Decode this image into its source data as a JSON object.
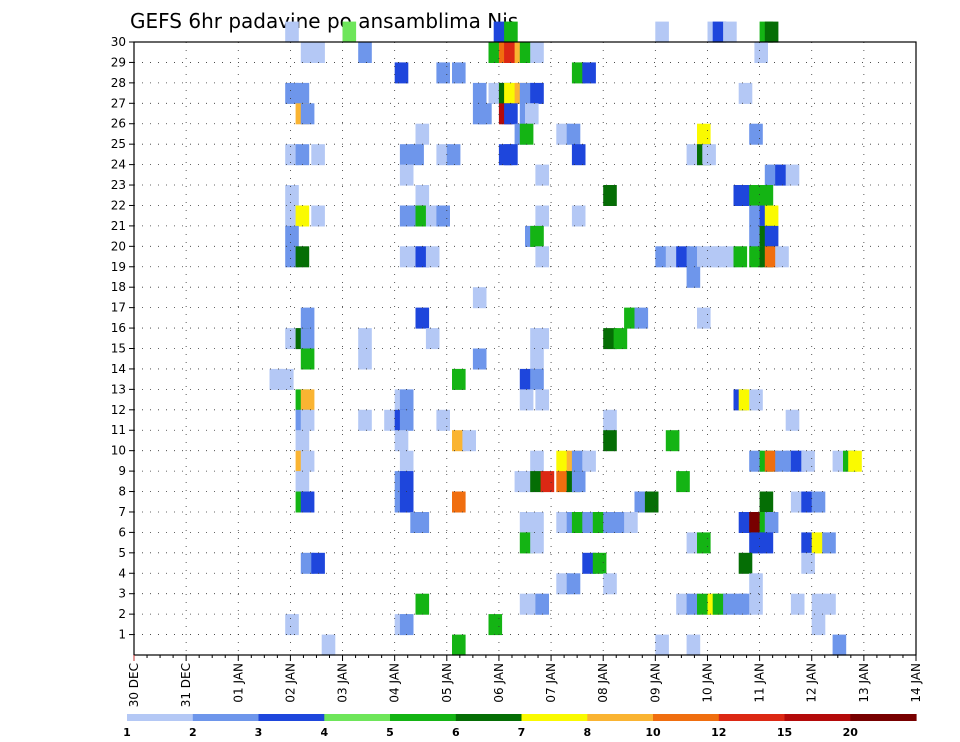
{
  "chart_data": {
    "type": "heatmap",
    "title": "GEFS 6hr padavine po ansamblima Nis",
    "xlabel": "",
    "ylabel": "",
    "x_ticks": [
      "30 DEC",
      "31 DEC",
      "01 JAN",
      "02 JAN",
      "03 JAN",
      "04 JAN",
      "05 JAN",
      "06 JAN",
      "07 JAN",
      "08 JAN",
      "09 JAN",
      "10 JAN",
      "11 JAN",
      "12 JAN",
      "13 JAN",
      "14 JAN"
    ],
    "xlim": [
      0,
      15
    ],
    "y_ticks": [
      1,
      2,
      3,
      4,
      5,
      6,
      7,
      8,
      9,
      10,
      11,
      12,
      13,
      14,
      15,
      16,
      17,
      18,
      19,
      20,
      21,
      22,
      23,
      24,
      25,
      26,
      27,
      28,
      29,
      30
    ],
    "ylim": [
      0,
      30
    ],
    "grid": true,
    "legend": {
      "placement": "bottom",
      "levels": [
        1,
        2,
        3,
        4,
        5,
        6,
        7,
        8,
        10,
        12,
        15,
        20
      ],
      "colors": [
        "#b4c8f5",
        "#6e96eb",
        "#1e46dc",
        "#6ee65a",
        "#14b414",
        "#056e05",
        "#fafa00",
        "#fab432",
        "#f06e0f",
        "#dc2814",
        "#b40a0a",
        "#780000"
      ]
    },
    "cells": [
      [
        2.9,
        30,
        1
      ],
      [
        4.0,
        30,
        4
      ],
      [
        6.9,
        30,
        3
      ],
      [
        7.1,
        30,
        5
      ],
      [
        10.0,
        30,
        1
      ],
      [
        11.0,
        30,
        1
      ],
      [
        11.1,
        30,
        3
      ],
      [
        11.3,
        30,
        1
      ],
      [
        12.0,
        30,
        5
      ],
      [
        12.1,
        30,
        6
      ],
      [
        3.2,
        29,
        1
      ],
      [
        3.4,
        29,
        1
      ],
      [
        4.3,
        29,
        2
      ],
      [
        6.8,
        29,
        5
      ],
      [
        7.0,
        29,
        10
      ],
      [
        7.1,
        29,
        12
      ],
      [
        7.3,
        29,
        8
      ],
      [
        7.4,
        29,
        5
      ],
      [
        7.6,
        29,
        1
      ],
      [
        11.9,
        29,
        1
      ],
      [
        5.0,
        28,
        3
      ],
      [
        5.8,
        28,
        2
      ],
      [
        6.1,
        28,
        2
      ],
      [
        8.4,
        28,
        5
      ],
      [
        8.6,
        28,
        3
      ],
      [
        2.9,
        27,
        2
      ],
      [
        3.1,
        27,
        2
      ],
      [
        6.5,
        27,
        2
      ],
      [
        6.8,
        27,
        1
      ],
      [
        7.0,
        27,
        6
      ],
      [
        7.1,
        27,
        7
      ],
      [
        7.3,
        27,
        8
      ],
      [
        7.4,
        27,
        2
      ],
      [
        7.6,
        27,
        3
      ],
      [
        11.6,
        27,
        1
      ],
      [
        3.1,
        26,
        8
      ],
      [
        3.2,
        26,
        2
      ],
      [
        6.5,
        26,
        2
      ],
      [
        6.6,
        26,
        2
      ],
      [
        7.0,
        26,
        15
      ],
      [
        7.1,
        26,
        3
      ],
      [
        7.4,
        26,
        2
      ],
      [
        7.5,
        26,
        1
      ],
      [
        5.4,
        25,
        1
      ],
      [
        7.3,
        25,
        2
      ],
      [
        7.4,
        25,
        5
      ],
      [
        8.1,
        25,
        1
      ],
      [
        8.3,
        25,
        2
      ],
      [
        10.8,
        25,
        7
      ],
      [
        11.8,
        25,
        2
      ],
      [
        2.9,
        24,
        1
      ],
      [
        3.1,
        24,
        2
      ],
      [
        3.4,
        24,
        1
      ],
      [
        5.1,
        24,
        2
      ],
      [
        5.3,
        24,
        2
      ],
      [
        5.8,
        24,
        1
      ],
      [
        6.0,
        24,
        2
      ],
      [
        7.0,
        24,
        3
      ],
      [
        7.1,
        24,
        3
      ],
      [
        8.4,
        24,
        3
      ],
      [
        10.6,
        24,
        1
      ],
      [
        10.8,
        24,
        6
      ],
      [
        10.9,
        24,
        1
      ],
      [
        5.1,
        23,
        1
      ],
      [
        7.7,
        23,
        1
      ],
      [
        12.1,
        23,
        2
      ],
      [
        12.3,
        23,
        3
      ],
      [
        12.5,
        23,
        1
      ],
      [
        2.9,
        22,
        1
      ],
      [
        5.4,
        22,
        1
      ],
      [
        9.0,
        22,
        6
      ],
      [
        11.5,
        22,
        3
      ],
      [
        11.6,
        22,
        3
      ],
      [
        11.8,
        22,
        5
      ],
      [
        12.0,
        22,
        5
      ],
      [
        2.9,
        21,
        1
      ],
      [
        3.1,
        21,
        7
      ],
      [
        3.4,
        21,
        1
      ],
      [
        5.1,
        21,
        2
      ],
      [
        5.3,
        21,
        2
      ],
      [
        5.4,
        21,
        5
      ],
      [
        5.6,
        21,
        1
      ],
      [
        5.8,
        21,
        2
      ],
      [
        7.7,
        21,
        1
      ],
      [
        8.4,
        21,
        1
      ],
      [
        11.8,
        21,
        2
      ],
      [
        12.0,
        21,
        3
      ],
      [
        12.1,
        21,
        7
      ],
      [
        2.9,
        20,
        2
      ],
      [
        7.5,
        20,
        2
      ],
      [
        7.6,
        20,
        5
      ],
      [
        11.8,
        20,
        2
      ],
      [
        12.0,
        20,
        6
      ],
      [
        12.1,
        20,
        3
      ],
      [
        2.9,
        19,
        2
      ],
      [
        3.1,
        19,
        6
      ],
      [
        5.1,
        19,
        1
      ],
      [
        5.3,
        19,
        1
      ],
      [
        5.4,
        19,
        3
      ],
      [
        5.6,
        19,
        1
      ],
      [
        7.7,
        19,
        1
      ],
      [
        10.0,
        19,
        2
      ],
      [
        10.2,
        19,
        1
      ],
      [
        10.4,
        19,
        3
      ],
      [
        10.6,
        19,
        2
      ],
      [
        10.8,
        19,
        1
      ],
      [
        11.0,
        19,
        1
      ],
      [
        11.1,
        19,
        1
      ],
      [
        11.3,
        19,
        1
      ],
      [
        11.5,
        19,
        5
      ],
      [
        11.8,
        19,
        5
      ],
      [
        12.0,
        19,
        6
      ],
      [
        12.1,
        19,
        10
      ],
      [
        12.3,
        19,
        1
      ],
      [
        10.6,
        18,
        2
      ],
      [
        6.5,
        17,
        1
      ],
      [
        3.2,
        16,
        2
      ],
      [
        5.4,
        16,
        3
      ],
      [
        9.4,
        16,
        5
      ],
      [
        9.6,
        16,
        2
      ],
      [
        10.8,
        16,
        1
      ],
      [
        2.9,
        15,
        1
      ],
      [
        3.1,
        15,
        6
      ],
      [
        3.2,
        15,
        2
      ],
      [
        4.3,
        15,
        1
      ],
      [
        5.6,
        15,
        1
      ],
      [
        7.6,
        15,
        1
      ],
      [
        7.7,
        15,
        1
      ],
      [
        9.0,
        15,
        6
      ],
      [
        9.2,
        15,
        5
      ],
      [
        3.2,
        14,
        5
      ],
      [
        4.3,
        14,
        1
      ],
      [
        6.5,
        14,
        2
      ],
      [
        7.6,
        14,
        1
      ],
      [
        2.6,
        13,
        1
      ],
      [
        2.8,
        13,
        1
      ],
      [
        6.1,
        13,
        5
      ],
      [
        7.4,
        13,
        3
      ],
      [
        7.6,
        13,
        2
      ],
      [
        3.1,
        12,
        5
      ],
      [
        3.2,
        12,
        8
      ],
      [
        5.0,
        12,
        1
      ],
      [
        5.1,
        12,
        2
      ],
      [
        7.4,
        12,
        1
      ],
      [
        7.7,
        12,
        1
      ],
      [
        11.5,
        12,
        3
      ],
      [
        11.6,
        12,
        7
      ],
      [
        11.8,
        12,
        1
      ],
      [
        3.1,
        11,
        2
      ],
      [
        3.2,
        11,
        1
      ],
      [
        4.3,
        11,
        1
      ],
      [
        4.8,
        11,
        1
      ],
      [
        5.0,
        11,
        3
      ],
      [
        5.1,
        11,
        2
      ],
      [
        5.8,
        11,
        1
      ],
      [
        9.0,
        11,
        1
      ],
      [
        12.5,
        11,
        1
      ],
      [
        3.1,
        10,
        1
      ],
      [
        5.0,
        10,
        1
      ],
      [
        6.1,
        10,
        8
      ],
      [
        6.3,
        10,
        1
      ],
      [
        9.0,
        10,
        6
      ],
      [
        10.2,
        10,
        5
      ],
      [
        3.1,
        9,
        8
      ],
      [
        3.2,
        9,
        1
      ],
      [
        5.1,
        9,
        1
      ],
      [
        7.6,
        9,
        1
      ],
      [
        8.1,
        9,
        7
      ],
      [
        8.3,
        9,
        8
      ],
      [
        8.4,
        9,
        2
      ],
      [
        8.6,
        9,
        1
      ],
      [
        11.8,
        9,
        2
      ],
      [
        12.0,
        9,
        5
      ],
      [
        12.1,
        9,
        10
      ],
      [
        12.3,
        9,
        2
      ],
      [
        12.5,
        9,
        2
      ],
      [
        12.6,
        9,
        3
      ],
      [
        12.8,
        9,
        1
      ],
      [
        13.4,
        9,
        1
      ],
      [
        13.6,
        9,
        5
      ],
      [
        13.7,
        9,
        7
      ],
      [
        3.1,
        8,
        1
      ],
      [
        5.0,
        8,
        2
      ],
      [
        5.1,
        8,
        3
      ],
      [
        7.3,
        8,
        1
      ],
      [
        7.4,
        8,
        1
      ],
      [
        7.6,
        8,
        6
      ],
      [
        7.8,
        8,
        12
      ],
      [
        8.1,
        8,
        10
      ],
      [
        8.3,
        8,
        6
      ],
      [
        8.4,
        8,
        2
      ],
      [
        10.4,
        8,
        5
      ],
      [
        3.1,
        7,
        5
      ],
      [
        3.2,
        7,
        3
      ],
      [
        5.0,
        7,
        2
      ],
      [
        5.1,
        7,
        3
      ],
      [
        6.1,
        7,
        10
      ],
      [
        9.6,
        7,
        2
      ],
      [
        9.8,
        7,
        6
      ],
      [
        12.0,
        7,
        6
      ],
      [
        12.6,
        7,
        1
      ],
      [
        12.8,
        7,
        3
      ],
      [
        13.0,
        7,
        2
      ],
      [
        5.3,
        6,
        2
      ],
      [
        5.4,
        6,
        2
      ],
      [
        7.4,
        6,
        1
      ],
      [
        7.6,
        6,
        1
      ],
      [
        8.1,
        6,
        1
      ],
      [
        8.3,
        6,
        2
      ],
      [
        8.4,
        6,
        5
      ],
      [
        8.6,
        6,
        2
      ],
      [
        8.8,
        6,
        5
      ],
      [
        9.0,
        6,
        2
      ],
      [
        9.2,
        6,
        2
      ],
      [
        9.4,
        6,
        1
      ],
      [
        11.6,
        6,
        3
      ],
      [
        11.8,
        6,
        20
      ],
      [
        12.0,
        6,
        5
      ],
      [
        12.1,
        6,
        2
      ],
      [
        7.4,
        5,
        5
      ],
      [
        7.6,
        5,
        1
      ],
      [
        10.6,
        5,
        1
      ],
      [
        10.8,
        5,
        5
      ],
      [
        11.8,
        5,
        3
      ],
      [
        12.0,
        5,
        3
      ],
      [
        12.8,
        5,
        3
      ],
      [
        13.0,
        5,
        7
      ],
      [
        13.2,
        5,
        2
      ],
      [
        3.2,
        4,
        2
      ],
      [
        3.4,
        4,
        3
      ],
      [
        8.6,
        4,
        3
      ],
      [
        8.8,
        4,
        5
      ],
      [
        11.6,
        4,
        6
      ],
      [
        12.8,
        4,
        1
      ],
      [
        8.1,
        3,
        1
      ],
      [
        8.3,
        3,
        2
      ],
      [
        9.0,
        3,
        1
      ],
      [
        11.8,
        3,
        1
      ],
      [
        5.4,
        2,
        5
      ],
      [
        7.4,
        2,
        1
      ],
      [
        7.6,
        2,
        1
      ],
      [
        7.7,
        2,
        2
      ],
      [
        10.4,
        2,
        1
      ],
      [
        10.6,
        2,
        2
      ],
      [
        10.8,
        2,
        5
      ],
      [
        11.0,
        2,
        7
      ],
      [
        11.1,
        2,
        5
      ],
      [
        11.3,
        2,
        2
      ],
      [
        11.5,
        2,
        2
      ],
      [
        11.6,
        2,
        2
      ],
      [
        11.8,
        2,
        1
      ],
      [
        12.6,
        2,
        1
      ],
      [
        13.0,
        2,
        1
      ],
      [
        13.2,
        2,
        1
      ],
      [
        2.9,
        1,
        1
      ],
      [
        5.0,
        1,
        1
      ],
      [
        5.1,
        1,
        2
      ],
      [
        6.8,
        1,
        5
      ],
      [
        13.0,
        1,
        1
      ],
      [
        3.6,
        0,
        1
      ],
      [
        6.1,
        0,
        5
      ],
      [
        10.0,
        0,
        1
      ],
      [
        10.6,
        0,
        1
      ],
      [
        13.4,
        0,
        2
      ]
    ]
  }
}
